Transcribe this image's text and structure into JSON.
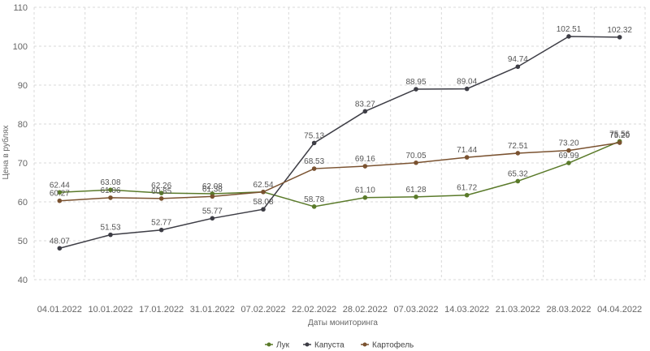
{
  "chart_data": {
    "type": "line",
    "xlabel": "Даты мониторинга",
    "ylabel": "Цена в рублях",
    "ylim": [
      40,
      110
    ],
    "yticks": [
      40,
      50,
      60,
      70,
      80,
      90,
      100,
      110
    ],
    "grid": true,
    "legend_position": "bottom",
    "x": [
      "04.01.2022",
      "10.01.2022",
      "17.01.2022",
      "31.01.2022",
      "07.02.2022",
      "22.02.2022",
      "28.02.2022",
      "07.03.2022",
      "14.03.2022",
      "21.03.2022",
      "28.03.2022",
      "04.04.2022"
    ],
    "series": [
      {
        "name": "Лук",
        "color": "#5a7a2a",
        "values": [
          62.44,
          63.08,
          62.26,
          62.08,
          62.54,
          58.78,
          61.1,
          61.28,
          61.72,
          65.32,
          69.99,
          75.56
        ],
        "labels": [
          "62.44",
          "63.08",
          "62.26",
          "62.08",
          "62.54",
          "58.78",
          "61.10",
          "61.28",
          "61.72",
          "65.32",
          "69.99",
          "75.56"
        ]
      },
      {
        "name": "Капуста",
        "color": "#3d3d45",
        "values": [
          48.07,
          51.53,
          52.77,
          55.77,
          58.08,
          75.13,
          83.27,
          88.95,
          89.04,
          94.74,
          102.51,
          102.32
        ],
        "labels": [
          "48.07",
          "51.53",
          "52.77",
          "55.77",
          "58.08",
          "75.13",
          "83.27",
          "88.95",
          "89.04",
          "94.74",
          "102.51",
          "102.32"
        ]
      },
      {
        "name": "Картофель",
        "color": "#7a5230",
        "values": [
          60.27,
          61.06,
          60.85,
          61.38,
          62.54,
          68.53,
          69.16,
          70.05,
          71.44,
          72.51,
          73.2,
          75.2
        ],
        "labels": [
          "60.27",
          "61.06",
          "60.85",
          "61.38",
          "",
          "68.53",
          "69.16",
          "70.05",
          "71.44",
          "72.51",
          "73.20",
          "75.20"
        ]
      }
    ]
  }
}
